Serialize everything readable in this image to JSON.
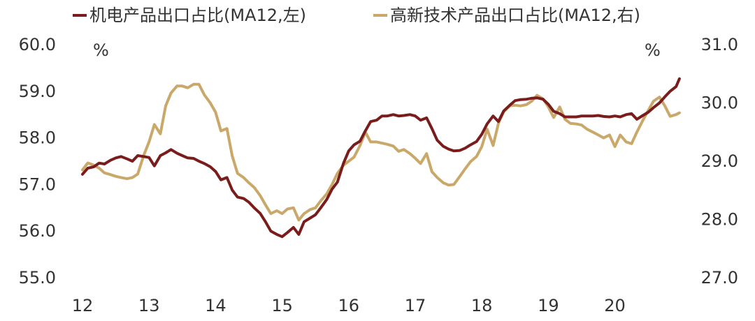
{
  "chart_data": {
    "type": "line",
    "title": "",
    "legend_position": "top",
    "grid": false,
    "x_ticks": [
      "12",
      "13",
      "14",
      "15",
      "16",
      "17",
      "18",
      "19",
      "20"
    ],
    "x_range": [
      12,
      20.95
    ],
    "y_left": {
      "unit": "%",
      "range": [
        55.0,
        60.0
      ],
      "ticks": [
        "55.0",
        "56.0",
        "57.0",
        "58.0",
        "59.0",
        "60.0"
      ]
    },
    "y_right": {
      "unit": "%",
      "range": [
        27.0,
        31.0
      ],
      "ticks": [
        "27.0",
        "28.0",
        "29.0",
        "30.0",
        "31.0"
      ]
    },
    "series": [
      {
        "name": "机电产品出口占比(MA12,左)",
        "axis": "left",
        "color": "#7b1c1c",
        "points": [
          [
            12.0,
            57.22
          ],
          [
            12.08,
            57.35
          ],
          [
            12.17,
            57.38
          ],
          [
            12.25,
            57.46
          ],
          [
            12.33,
            57.44
          ],
          [
            12.42,
            57.52
          ],
          [
            12.5,
            57.57
          ],
          [
            12.58,
            57.6
          ],
          [
            12.67,
            57.55
          ],
          [
            12.75,
            57.5
          ],
          [
            12.83,
            57.62
          ],
          [
            12.92,
            57.6
          ],
          [
            13.0,
            57.58
          ],
          [
            13.08,
            57.4
          ],
          [
            13.17,
            57.62
          ],
          [
            13.25,
            57.68
          ],
          [
            13.33,
            57.75
          ],
          [
            13.42,
            57.67
          ],
          [
            13.5,
            57.62
          ],
          [
            13.58,
            57.57
          ],
          [
            13.67,
            57.56
          ],
          [
            13.75,
            57.5
          ],
          [
            13.83,
            57.45
          ],
          [
            13.92,
            57.38
          ],
          [
            14.0,
            57.28
          ],
          [
            14.08,
            57.1
          ],
          [
            14.17,
            57.15
          ],
          [
            14.25,
            56.88
          ],
          [
            14.33,
            56.73
          ],
          [
            14.42,
            56.7
          ],
          [
            14.5,
            56.62
          ],
          [
            14.58,
            56.5
          ],
          [
            14.67,
            56.38
          ],
          [
            14.75,
            56.2
          ],
          [
            14.83,
            56.0
          ],
          [
            14.92,
            55.93
          ],
          [
            15.0,
            55.88
          ],
          [
            15.08,
            55.97
          ],
          [
            15.17,
            56.08
          ],
          [
            15.25,
            55.93
          ],
          [
            15.33,
            56.2
          ],
          [
            15.42,
            56.28
          ],
          [
            15.5,
            56.35
          ],
          [
            15.58,
            56.5
          ],
          [
            15.67,
            56.68
          ],
          [
            15.75,
            56.9
          ],
          [
            15.83,
            57.05
          ],
          [
            15.92,
            57.45
          ],
          [
            16.0,
            57.72
          ],
          [
            16.08,
            57.85
          ],
          [
            16.17,
            57.93
          ],
          [
            16.25,
            58.15
          ],
          [
            16.33,
            58.35
          ],
          [
            16.42,
            58.38
          ],
          [
            16.5,
            58.47
          ],
          [
            16.58,
            58.47
          ],
          [
            16.67,
            58.5
          ],
          [
            16.75,
            58.47
          ],
          [
            16.83,
            58.48
          ],
          [
            16.92,
            58.5
          ],
          [
            17.0,
            58.47
          ],
          [
            17.08,
            58.38
          ],
          [
            17.17,
            58.43
          ],
          [
            17.25,
            58.2
          ],
          [
            17.33,
            57.95
          ],
          [
            17.42,
            57.82
          ],
          [
            17.5,
            57.76
          ],
          [
            17.58,
            57.72
          ],
          [
            17.67,
            57.73
          ],
          [
            17.75,
            57.78
          ],
          [
            17.83,
            57.85
          ],
          [
            17.92,
            57.92
          ],
          [
            18.0,
            58.08
          ],
          [
            18.08,
            58.3
          ],
          [
            18.17,
            58.47
          ],
          [
            18.25,
            58.35
          ],
          [
            18.33,
            58.58
          ],
          [
            18.42,
            58.7
          ],
          [
            18.5,
            58.8
          ],
          [
            18.58,
            58.82
          ],
          [
            18.67,
            58.83
          ],
          [
            18.75,
            58.85
          ],
          [
            18.83,
            58.86
          ],
          [
            18.92,
            58.83
          ],
          [
            19.0,
            58.72
          ],
          [
            19.08,
            58.57
          ],
          [
            19.17,
            58.52
          ],
          [
            19.25,
            58.45
          ],
          [
            19.33,
            58.45
          ],
          [
            19.42,
            58.45
          ],
          [
            19.5,
            58.47
          ],
          [
            19.58,
            58.47
          ],
          [
            19.67,
            58.47
          ],
          [
            19.75,
            58.48
          ],
          [
            19.83,
            58.46
          ],
          [
            19.92,
            58.45
          ],
          [
            20.0,
            58.47
          ],
          [
            20.08,
            58.45
          ],
          [
            20.17,
            58.5
          ],
          [
            20.25,
            58.52
          ],
          [
            20.33,
            58.4
          ],
          [
            20.42,
            58.48
          ],
          [
            20.5,
            58.55
          ],
          [
            20.58,
            58.65
          ],
          [
            20.67,
            58.75
          ],
          [
            20.75,
            58.88
          ],
          [
            20.83,
            59.0
          ],
          [
            20.92,
            59.1
          ],
          [
            20.97,
            59.27
          ]
        ]
      },
      {
        "name": "高新技术产品出口占比(MA12,右)",
        "axis": "right",
        "color": "#c9a86a",
        "points": [
          [
            12.0,
            28.85
          ],
          [
            12.08,
            28.97
          ],
          [
            12.17,
            28.93
          ],
          [
            12.25,
            28.88
          ],
          [
            12.33,
            28.8
          ],
          [
            12.42,
            28.77
          ],
          [
            12.5,
            28.74
          ],
          [
            12.58,
            28.72
          ],
          [
            12.67,
            28.7
          ],
          [
            12.75,
            28.72
          ],
          [
            12.83,
            28.78
          ],
          [
            12.92,
            29.1
          ],
          [
            13.0,
            29.33
          ],
          [
            13.08,
            29.63
          ],
          [
            13.17,
            29.47
          ],
          [
            13.25,
            29.95
          ],
          [
            13.33,
            30.17
          ],
          [
            13.42,
            30.29
          ],
          [
            13.5,
            30.29
          ],
          [
            13.58,
            30.26
          ],
          [
            13.67,
            30.32
          ],
          [
            13.75,
            30.32
          ],
          [
            13.83,
            30.14
          ],
          [
            13.92,
            30.0
          ],
          [
            14.0,
            29.84
          ],
          [
            14.08,
            29.52
          ],
          [
            14.17,
            29.56
          ],
          [
            14.25,
            29.09
          ],
          [
            14.33,
            28.79
          ],
          [
            14.42,
            28.72
          ],
          [
            14.5,
            28.63
          ],
          [
            14.58,
            28.55
          ],
          [
            14.67,
            28.41
          ],
          [
            14.75,
            28.25
          ],
          [
            14.83,
            28.1
          ],
          [
            14.92,
            28.15
          ],
          [
            15.0,
            28.1
          ],
          [
            15.08,
            28.18
          ],
          [
            15.17,
            28.2
          ],
          [
            15.25,
            27.99
          ],
          [
            15.33,
            28.1
          ],
          [
            15.42,
            28.17
          ],
          [
            15.5,
            28.2
          ],
          [
            15.58,
            28.32
          ],
          [
            15.67,
            28.44
          ],
          [
            15.75,
            28.6
          ],
          [
            15.83,
            28.79
          ],
          [
            15.92,
            28.93
          ],
          [
            16.0,
            29.0
          ],
          [
            16.08,
            29.07
          ],
          [
            16.17,
            29.27
          ],
          [
            16.25,
            29.5
          ],
          [
            16.33,
            29.33
          ],
          [
            16.42,
            29.33
          ],
          [
            16.5,
            29.31
          ],
          [
            16.58,
            29.29
          ],
          [
            16.67,
            29.26
          ],
          [
            16.75,
            29.17
          ],
          [
            16.83,
            29.2
          ],
          [
            16.92,
            29.13
          ],
          [
            17.0,
            29.05
          ],
          [
            17.08,
            28.96
          ],
          [
            17.17,
            29.13
          ],
          [
            17.25,
            28.82
          ],
          [
            17.33,
            28.72
          ],
          [
            17.42,
            28.63
          ],
          [
            17.5,
            28.59
          ],
          [
            17.58,
            28.6
          ],
          [
            17.67,
            28.74
          ],
          [
            17.75,
            28.87
          ],
          [
            17.83,
            28.99
          ],
          [
            17.92,
            29.08
          ],
          [
            18.0,
            29.25
          ],
          [
            18.08,
            29.55
          ],
          [
            18.17,
            29.27
          ],
          [
            18.25,
            29.65
          ],
          [
            18.33,
            29.85
          ],
          [
            18.42,
            29.95
          ],
          [
            18.5,
            29.96
          ],
          [
            18.58,
            29.95
          ],
          [
            18.67,
            29.97
          ],
          [
            18.75,
            30.03
          ],
          [
            18.83,
            30.13
          ],
          [
            18.92,
            30.07
          ],
          [
            19.0,
            29.93
          ],
          [
            19.08,
            29.75
          ],
          [
            19.17,
            29.93
          ],
          [
            19.25,
            29.72
          ],
          [
            19.33,
            29.65
          ],
          [
            19.42,
            29.64
          ],
          [
            19.5,
            29.62
          ],
          [
            19.58,
            29.55
          ],
          [
            19.67,
            29.5
          ],
          [
            19.75,
            29.45
          ],
          [
            19.83,
            29.4
          ],
          [
            19.92,
            29.45
          ],
          [
            20.0,
            29.25
          ],
          [
            20.08,
            29.45
          ],
          [
            20.17,
            29.33
          ],
          [
            20.25,
            29.3
          ],
          [
            20.33,
            29.5
          ],
          [
            20.42,
            29.7
          ],
          [
            20.5,
            29.87
          ],
          [
            20.58,
            30.03
          ],
          [
            20.67,
            30.1
          ],
          [
            20.75,
            29.95
          ],
          [
            20.83,
            29.77
          ],
          [
            20.92,
            29.8
          ],
          [
            20.97,
            29.83
          ]
        ]
      }
    ]
  }
}
